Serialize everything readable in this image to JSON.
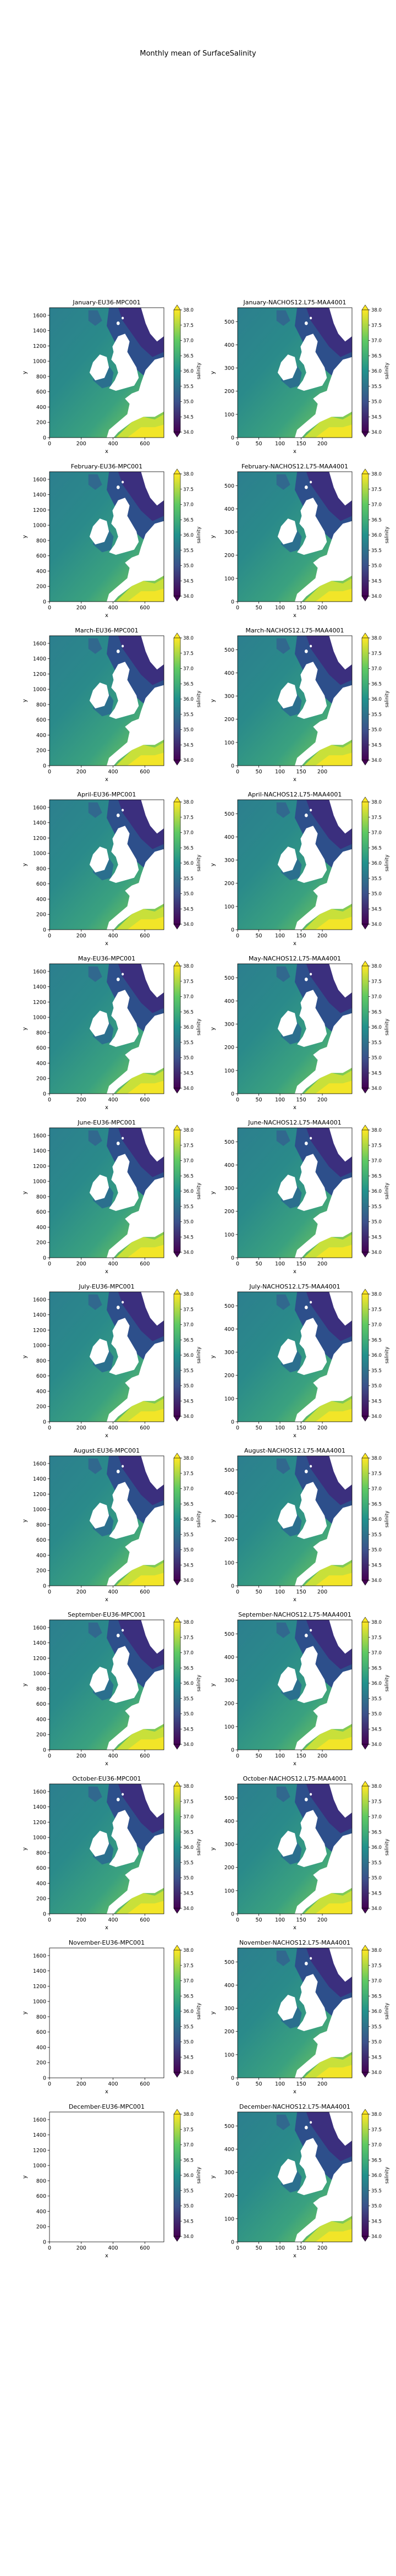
{
  "figure": {
    "suptitle": "Monthly mean of SurfaceSalinity"
  },
  "colorbar": {
    "label": "salinity",
    "ticks": [
      "38.0",
      "37.5",
      "37.0",
      "36.5",
      "36.0",
      "35.5",
      "35.0",
      "34.5",
      "34.0"
    ],
    "range": [
      34.0,
      38.0
    ],
    "colormap": [
      "#440154",
      "#3b528b",
      "#21918c",
      "#5ec962",
      "#fde725"
    ]
  },
  "chart_data": [
    {
      "type": "heatmap",
      "title": "January-EU36-MPC001",
      "xlabel": "x",
      "ylabel": "y",
      "xticks": [
        "0",
        "200",
        "400",
        "600"
      ],
      "yticks": [
        "0",
        "200",
        "400",
        "600",
        "800",
        "1000",
        "1200",
        "1400",
        "1600"
      ],
      "xlim": [
        0,
        720
      ],
      "ylim": [
        0,
        1700
      ],
      "has_data": true
    },
    {
      "type": "heatmap",
      "title": "January-NACHOS12.L75-MAA4001",
      "xlabel": "x",
      "ylabel": "y",
      "xticks": [
        "0",
        "50",
        "100",
        "150",
        "200"
      ],
      "yticks": [
        "0",
        "100",
        "200",
        "300",
        "400",
        "500"
      ],
      "xlim": [
        0,
        270
      ],
      "ylim": [
        0,
        560
      ],
      "has_data": true
    },
    {
      "type": "heatmap",
      "title": "February-EU36-MPC001",
      "xlabel": "x",
      "ylabel": "y",
      "xticks": [
        "0",
        "200",
        "400",
        "600"
      ],
      "yticks": [
        "0",
        "200",
        "400",
        "600",
        "800",
        "1000",
        "1200",
        "1400",
        "1600"
      ],
      "xlim": [
        0,
        720
      ],
      "ylim": [
        0,
        1700
      ],
      "has_data": true
    },
    {
      "type": "heatmap",
      "title": "February-NACHOS12.L75-MAA4001",
      "xlabel": "x",
      "ylabel": "y",
      "xticks": [
        "0",
        "50",
        "100",
        "150",
        "200"
      ],
      "yticks": [
        "0",
        "100",
        "200",
        "300",
        "400",
        "500"
      ],
      "xlim": [
        0,
        270
      ],
      "ylim": [
        0,
        560
      ],
      "has_data": true
    },
    {
      "type": "heatmap",
      "title": "March-EU36-MPC001",
      "xlabel": "x",
      "ylabel": "y",
      "xticks": [
        "0",
        "200",
        "400",
        "600"
      ],
      "yticks": [
        "0",
        "200",
        "400",
        "600",
        "800",
        "1000",
        "1200",
        "1400",
        "1600"
      ],
      "xlim": [
        0,
        720
      ],
      "ylim": [
        0,
        1700
      ],
      "has_data": true
    },
    {
      "type": "heatmap",
      "title": "March-NACHOS12.L75-MAA4001",
      "xlabel": "x",
      "ylabel": "y",
      "xticks": [
        "0",
        "50",
        "100",
        "150",
        "200"
      ],
      "yticks": [
        "0",
        "100",
        "200",
        "300",
        "400",
        "500"
      ],
      "xlim": [
        0,
        270
      ],
      "ylim": [
        0,
        560
      ],
      "has_data": true
    },
    {
      "type": "heatmap",
      "title": "April-EU36-MPC001",
      "xlabel": "x",
      "ylabel": "y",
      "xticks": [
        "0",
        "200",
        "400",
        "600"
      ],
      "yticks": [
        "0",
        "200",
        "400",
        "600",
        "800",
        "1000",
        "1200",
        "1400",
        "1600"
      ],
      "xlim": [
        0,
        720
      ],
      "ylim": [
        0,
        1700
      ],
      "has_data": true
    },
    {
      "type": "heatmap",
      "title": "April-NACHOS12.L75-MAA4001",
      "xlabel": "x",
      "ylabel": "y",
      "xticks": [
        "0",
        "50",
        "100",
        "150",
        "200"
      ],
      "yticks": [
        "0",
        "100",
        "200",
        "300",
        "400",
        "500"
      ],
      "xlim": [
        0,
        270
      ],
      "ylim": [
        0,
        560
      ],
      "has_data": true
    },
    {
      "type": "heatmap",
      "title": "May-EU36-MPC001",
      "xlabel": "x",
      "ylabel": "y",
      "xticks": [
        "0",
        "200",
        "400",
        "600"
      ],
      "yticks": [
        "0",
        "200",
        "400",
        "600",
        "800",
        "1000",
        "1200",
        "1400",
        "1600"
      ],
      "xlim": [
        0,
        720
      ],
      "ylim": [
        0,
        1700
      ],
      "has_data": true
    },
    {
      "type": "heatmap",
      "title": "May-NACHOS12.L75-MAA4001",
      "xlabel": "x",
      "ylabel": "y",
      "xticks": [
        "0",
        "50",
        "100",
        "150",
        "200"
      ],
      "yticks": [
        "0",
        "100",
        "200",
        "300",
        "400",
        "500"
      ],
      "xlim": [
        0,
        270
      ],
      "ylim": [
        0,
        560
      ],
      "has_data": true
    },
    {
      "type": "heatmap",
      "title": "June-EU36-MPC001",
      "xlabel": "x",
      "ylabel": "y",
      "xticks": [
        "0",
        "200",
        "400",
        "600"
      ],
      "yticks": [
        "0",
        "200",
        "400",
        "600",
        "800",
        "1000",
        "1200",
        "1400",
        "1600"
      ],
      "xlim": [
        0,
        720
      ],
      "ylim": [
        0,
        1700
      ],
      "has_data": true
    },
    {
      "type": "heatmap",
      "title": "June-NACHOS12.L75-MAA4001",
      "xlabel": "x",
      "ylabel": "y",
      "xticks": [
        "0",
        "50",
        "100",
        "150",
        "200"
      ],
      "yticks": [
        "0",
        "100",
        "200",
        "300",
        "400",
        "500"
      ],
      "xlim": [
        0,
        270
      ],
      "ylim": [
        0,
        560
      ],
      "has_data": true
    },
    {
      "type": "heatmap",
      "title": "July-EU36-MPC001",
      "xlabel": "x",
      "ylabel": "y",
      "xticks": [
        "0",
        "200",
        "400",
        "600"
      ],
      "yticks": [
        "0",
        "200",
        "400",
        "600",
        "800",
        "1000",
        "1200",
        "1400",
        "1600"
      ],
      "xlim": [
        0,
        720
      ],
      "ylim": [
        0,
        1700
      ],
      "has_data": true
    },
    {
      "type": "heatmap",
      "title": "July-NACHOS12.L75-MAA4001",
      "xlabel": "x",
      "ylabel": "y",
      "xticks": [
        "0",
        "50",
        "100",
        "150",
        "200"
      ],
      "yticks": [
        "0",
        "100",
        "200",
        "300",
        "400",
        "500"
      ],
      "xlim": [
        0,
        270
      ],
      "ylim": [
        0,
        560
      ],
      "has_data": true
    },
    {
      "type": "heatmap",
      "title": "August-EU36-MPC001",
      "xlabel": "x",
      "ylabel": "y",
      "xticks": [
        "0",
        "200",
        "400",
        "600"
      ],
      "yticks": [
        "0",
        "200",
        "400",
        "600",
        "800",
        "1000",
        "1200",
        "1400",
        "1600"
      ],
      "xlim": [
        0,
        720
      ],
      "ylim": [
        0,
        1700
      ],
      "has_data": true
    },
    {
      "type": "heatmap",
      "title": "August-NACHOS12.L75-MAA4001",
      "xlabel": "x",
      "ylabel": "y",
      "xticks": [
        "0",
        "50",
        "100",
        "150",
        "200"
      ],
      "yticks": [
        "0",
        "100",
        "200",
        "300",
        "400",
        "500"
      ],
      "xlim": [
        0,
        270
      ],
      "ylim": [
        0,
        560
      ],
      "has_data": true
    },
    {
      "type": "heatmap",
      "title": "September-EU36-MPC001",
      "xlabel": "x",
      "ylabel": "y",
      "xticks": [
        "0",
        "200",
        "400",
        "600"
      ],
      "yticks": [
        "0",
        "200",
        "400",
        "600",
        "800",
        "1000",
        "1200",
        "1400",
        "1600"
      ],
      "xlim": [
        0,
        720
      ],
      "ylim": [
        0,
        1700
      ],
      "has_data": true
    },
    {
      "type": "heatmap",
      "title": "September-NACHOS12.L75-MAA4001",
      "xlabel": "x",
      "ylabel": "y",
      "xticks": [
        "0",
        "50",
        "100",
        "150",
        "200"
      ],
      "yticks": [
        "0",
        "100",
        "200",
        "300",
        "400",
        "500"
      ],
      "xlim": [
        0,
        270
      ],
      "ylim": [
        0,
        560
      ],
      "has_data": true
    },
    {
      "type": "heatmap",
      "title": "October-EU36-MPC001",
      "xlabel": "x",
      "ylabel": "y",
      "xticks": [
        "0",
        "200",
        "400",
        "600"
      ],
      "yticks": [
        "0",
        "200",
        "400",
        "600",
        "800",
        "1000",
        "1200",
        "1400",
        "1600"
      ],
      "xlim": [
        0,
        720
      ],
      "ylim": [
        0,
        1700
      ],
      "has_data": true
    },
    {
      "type": "heatmap",
      "title": "October-NACHOS12.L75-MAA4001",
      "xlabel": "x",
      "ylabel": "y",
      "xticks": [
        "0",
        "50",
        "100",
        "150",
        "200"
      ],
      "yticks": [
        "0",
        "100",
        "200",
        "300",
        "400",
        "500"
      ],
      "xlim": [
        0,
        270
      ],
      "ylim": [
        0,
        560
      ],
      "has_data": true
    },
    {
      "type": "heatmap",
      "title": "November-EU36-MPC001",
      "xlabel": "x",
      "ylabel": "y",
      "xticks": [
        "0",
        "200",
        "400",
        "600"
      ],
      "yticks": [
        "0",
        "200",
        "400",
        "600",
        "800",
        "1000",
        "1200",
        "1400",
        "1600"
      ],
      "xlim": [
        0,
        720
      ],
      "ylim": [
        0,
        1700
      ],
      "has_data": false
    },
    {
      "type": "heatmap",
      "title": "November-NACHOS12.L75-MAA4001",
      "xlabel": "x",
      "ylabel": "y",
      "xticks": [
        "0",
        "50",
        "100",
        "150",
        "200"
      ],
      "yticks": [
        "0",
        "100",
        "200",
        "300",
        "400",
        "500"
      ],
      "xlim": [
        0,
        270
      ],
      "ylim": [
        0,
        560
      ],
      "has_data": true
    },
    {
      "type": "heatmap",
      "title": "December-EU36-MPC001",
      "xlabel": "x",
      "ylabel": "y",
      "xticks": [
        "0",
        "200",
        "400",
        "600"
      ],
      "yticks": [
        "0",
        "200",
        "400",
        "600",
        "800",
        "1000",
        "1200",
        "1400",
        "1600"
      ],
      "xlim": [
        0,
        720
      ],
      "ylim": [
        0,
        1700
      ],
      "has_data": false
    },
    {
      "type": "heatmap",
      "title": "December-NACHOS12.L75-MAA4001",
      "xlabel": "x",
      "ylabel": "y",
      "xticks": [
        "0",
        "50",
        "100",
        "150",
        "200"
      ],
      "yticks": [
        "0",
        "100",
        "200",
        "300",
        "400",
        "500"
      ],
      "xlim": [
        0,
        270
      ],
      "ylim": [
        0,
        560
      ],
      "has_data": true
    }
  ]
}
